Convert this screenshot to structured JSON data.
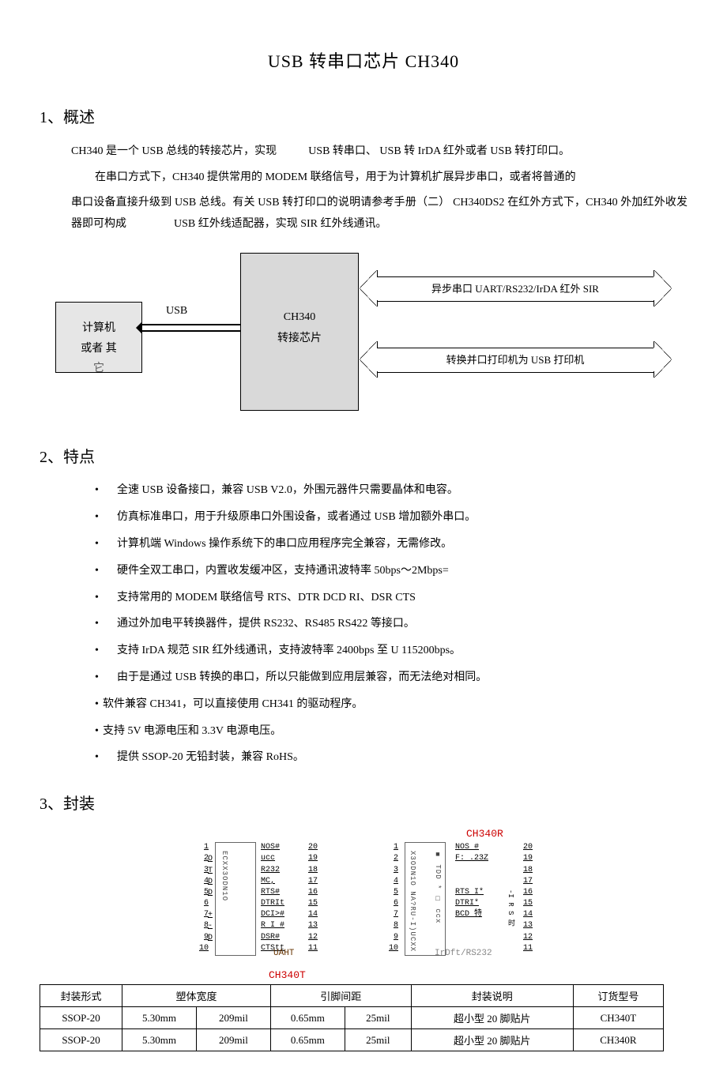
{
  "title": "USB 转串口芯片 CH340",
  "sections": {
    "s1": "1、概述",
    "s2": "2、特点",
    "s3": "3、封装"
  },
  "overview": {
    "p1a": "CH340 是一个 USB 总线的转接芯片，实现",
    "p1b": "USB 转串口、 USB 转 IrDA 红外或者 USB 转打印口。",
    "p2": "在串口方式下，CH340 提供常用的 MODEM 联络信号，用于为计算机扩展异步串口，或者将普通的",
    "p3": "串口设备直接升级到 USB 总线。有关 USB 转打印口的说明请参考手册（二） CH340DS2 在红外方式下，CH340 外加红外收发器即可构成",
    "p3b": "USB 红外线适配器，实现 SIR 红外线通讯。"
  },
  "diagram": {
    "left_box_l1": "计算机",
    "left_box_l2": "或者 其",
    "left_box_l3": "它",
    "usb_label": "USB",
    "center_l1": "CH340",
    "center_l2": "转接芯片",
    "arrow1": "异步串口  UART/RS232/IrDA  红外 SIR",
    "arrow2": "转换并口打印机为   USB 打印机"
  },
  "features": [
    {
      "bullet": true,
      "text": "全速 USB 设备接口，兼容 USB V2.0，外围元器件只需要晶体和电容。"
    },
    {
      "bullet": true,
      "text": "仿真标准串口，用于升级原串口外围设备，或者通过      USB 增加额外串口。"
    },
    {
      "bullet": true,
      "text": "计算机端 Windows 操作系统下的串口应用程序完全兼容，无需修改。"
    },
    {
      "bullet": true,
      "text": "硬件全双工串口，内置收发缓冲区，支持通讯波特率     50bps～2Mbps="
    },
    {
      "bullet": true,
      "text": "支持常用的 MODEM 联络信号 RTS、DTR DCD RI、DSR CTS"
    },
    {
      "bullet": true,
      "text": "通过外加电平转换器件，提供   RS232、RS485 RS422 等接口。"
    },
    {
      "bullet": true,
      "text": "支持 IrDA 规范 SIR 红外线通讯，支持波特率 2400bps 至 U 115200bps。"
    },
    {
      "bullet": true,
      "text": "由于是通过 USB 转换的串口，所以只能做到应用层兼容，而无法绝对相同。"
    },
    {
      "bullet": false,
      "text": "软件兼容 CH341，可以直接使用 CH341 的驱动程序。"
    },
    {
      "bullet": false,
      "text": "支持 5V 电源电压和 3.3V 电源电压。"
    },
    {
      "bullet": true,
      "text": "提供 SSOP-20 无铅封装，兼容 RoHS。"
    }
  ],
  "chips": {
    "label_r": "CH340R",
    "label_t": "CH340T",
    "left_pins": [
      "1",
      "2",
      "3",
      "4",
      "5",
      "6",
      "7",
      "8",
      "9",
      "10"
    ],
    "right_pins": [
      "20",
      "19",
      "18",
      "17",
      "16",
      "15",
      "14",
      "13",
      "12",
      "11"
    ],
    "chipA": {
      "body_text": "ECXX3ODN1O",
      "left_sig": [
        "",
        "O",
        "T",
        "D",
        "D",
        "",
        "+",
        "-",
        "D",
        ""
      ],
      "right_sig": [
        "NOS#",
        "ucc",
        "R232",
        "MC,",
        "RTS#",
        "DTRIt",
        "DCI>#",
        "R I #",
        "DSR#",
        "CTStt"
      ],
      "sub": "UAHT"
    },
    "chipB": {
      "body_text": "X3ODN1O NA?RU-I)UCXX",
      "left_sig_v": "■ TDD * □ ccx",
      "right_sig": [
        "NOS #",
        "F: .23Z",
        "",
        "",
        "RTS I*",
        "DTRI*",
        "BCD 特",
        "",
        "",
        ""
      ],
      "right_sig_v": "-I R S 时",
      "sub": "IrDft/RS232"
    }
  },
  "table": {
    "headers": [
      "封装形式",
      "塑体宽度",
      "",
      "引脚间距",
      "",
      "封装说明",
      "订货型号"
    ],
    "rows": [
      [
        "SSOP-20",
        "5.30mm",
        "209mil",
        "0.65mm",
        "25mil",
        "超小型 20 脚贴片",
        "CH340T"
      ],
      [
        "SSOP-20",
        "5.30mm",
        "209mil",
        "0.65mm",
        "25mil",
        "超小型 20 脚贴片",
        "CH340R"
      ]
    ],
    "col_widths": [
      "90px",
      "80px",
      "80px",
      "80px",
      "70px",
      "190px",
      "100px"
    ]
  }
}
